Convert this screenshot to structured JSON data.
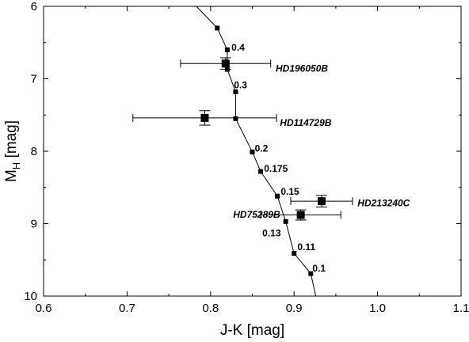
{
  "chart_data": {
    "type": "scatter",
    "xlabel": "J-K [mag]",
    "ylabel_main": "M",
    "ylabel_sub": "H",
    "ylabel_rest": " [mag]",
    "xlim": [
      0.6,
      1.1
    ],
    "ylim": [
      6,
      10
    ],
    "y_inverted": true,
    "x_ticks": [
      "0.6",
      "0.7",
      "0.8",
      "0.9",
      "1.0",
      "1.1"
    ],
    "y_ticks": [
      "6",
      "7",
      "8",
      "9",
      "10"
    ],
    "grid": false,
    "track": {
      "points": [
        {
          "x": 0.808,
          "y": 6.3
        },
        {
          "x": 0.82,
          "y": 6.6
        },
        {
          "x": 0.82,
          "y": 6.87
        },
        {
          "x": 0.83,
          "y": 7.18
        },
        {
          "x": 0.83,
          "y": 7.55
        },
        {
          "x": 0.85,
          "y": 8.01
        },
        {
          "x": 0.86,
          "y": 8.28
        },
        {
          "x": 0.88,
          "y": 8.62
        },
        {
          "x": 0.89,
          "y": 8.97
        },
        {
          "x": 0.9,
          "y": 9.41
        },
        {
          "x": 0.92,
          "y": 9.69
        }
      ],
      "line_start": {
        "x": 0.783,
        "y": 6.0
      },
      "line_end": {
        "x": 0.926,
        "y": 10.0
      }
    },
    "mass_labels": [
      {
        "text": "0.4",
        "x": 0.825,
        "y": 6.57
      },
      {
        "text": "0.3",
        "x": 0.828,
        "y": 7.09
      },
      {
        "text": "0.2",
        "x": 0.853,
        "y": 7.96
      },
      {
        "text": "0.175",
        "x": 0.864,
        "y": 8.24
      },
      {
        "text": "0.15",
        "x": 0.884,
        "y": 8.56
      },
      {
        "text": "0.13",
        "x": 0.862,
        "y": 9.13
      },
      {
        "text": "0.11",
        "x": 0.904,
        "y": 9.32
      },
      {
        "text": "0.1",
        "x": 0.922,
        "y": 9.62
      }
    ],
    "companions": [
      {
        "name": "HD196050B",
        "x": 0.818,
        "y": 6.79,
        "xerr": 0.054,
        "yerr": 0.08,
        "label_x": 0.878,
        "label_y": 6.9
      },
      {
        "name": "HD114729B",
        "x": 0.793,
        "y": 7.54,
        "xerr": 0.086,
        "yerr": 0.1,
        "label_x": 0.883,
        "label_y": 7.65
      },
      {
        "name": "HD213240C",
        "x": 0.933,
        "y": 8.69,
        "xerr": 0.037,
        "yerr": 0.08,
        "label_x": 0.976,
        "label_y": 8.76
      },
      {
        "name": "HD75289B",
        "x": 0.908,
        "y": 8.88,
        "xerr": 0.048,
        "yerr": 0.07,
        "label_x": 0.827,
        "label_y": 8.92
      }
    ]
  }
}
